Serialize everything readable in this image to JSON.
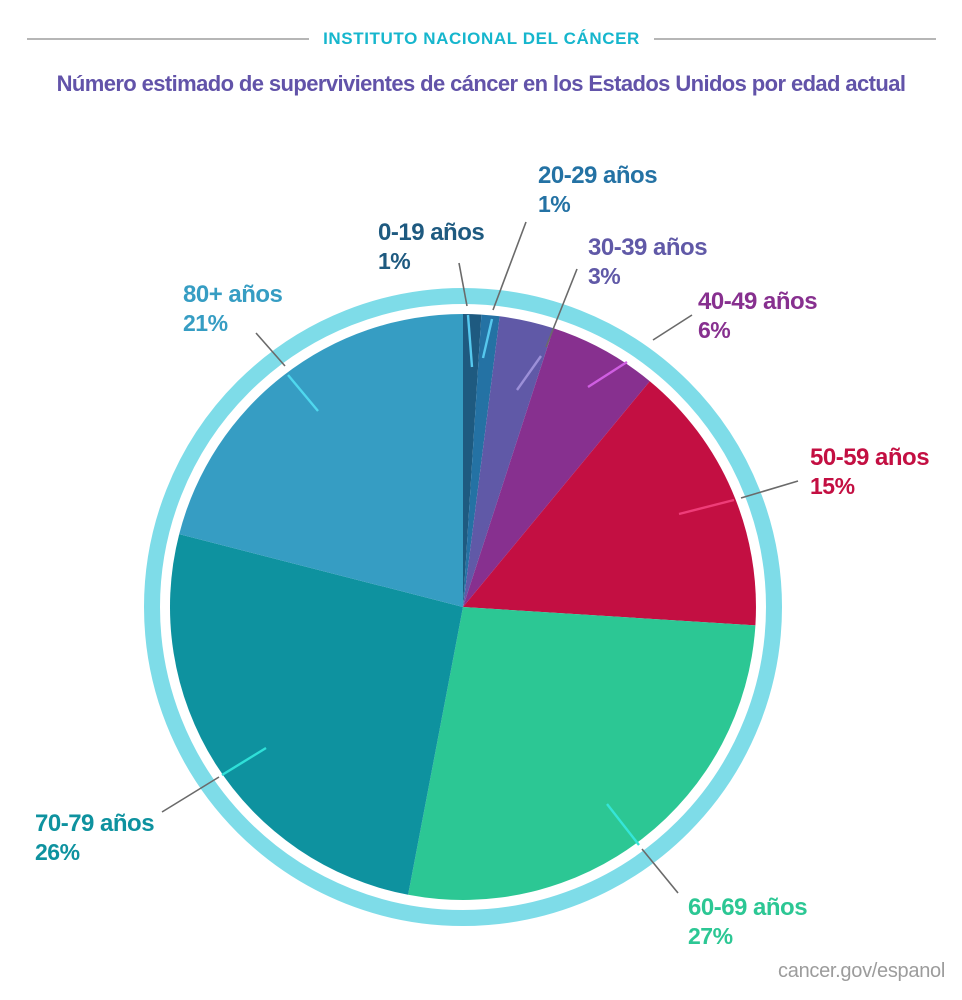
{
  "header": {
    "institute_label": "INSTITUTO NACIONAL DEL CÁNCER"
  },
  "title": "Número estimado de supervivientes de cáncer en los Estados Unidos por edad actual",
  "footer": {
    "url_label": "cancer.gov/espanol"
  },
  "colors": {
    "header_teal": "#16b6cd",
    "title_purple": "#6253a9",
    "ring_cyan": "#7edce8",
    "leader_gray": "#6a6a6a",
    "rule_gray": "#b6b6b6",
    "footer_gray": "#9c9c9c",
    "background": "#ffffff"
  },
  "chart_data": {
    "type": "pie",
    "title": "Número estimado de supervivientes de cáncer en los Estados Unidos por edad actual",
    "units": "percent",
    "start_angle_deg": 0,
    "direction": "clockwise",
    "total_percent": 100,
    "legend_position": "labels-around-pie",
    "slices": [
      {
        "label": "0-19 años",
        "percent": 1,
        "percent_label": "1%",
        "color": "#1e5a80",
        "leader_color": "#56c8ee"
      },
      {
        "label": "20-29 años",
        "percent": 1,
        "percent_label": "1%",
        "color": "#2472a4",
        "leader_color": "#56c8ee"
      },
      {
        "label": "30-39 años",
        "percent": 3,
        "percent_label": "3%",
        "color": "#6059a7",
        "leader_color": "#9c90d8"
      },
      {
        "label": "40-49 años",
        "percent": 6,
        "percent_label": "6%",
        "color": "#87308f",
        "leader_color": "#d05ee2"
      },
      {
        "label": "50-59 años",
        "percent": 15,
        "percent_label": "15%",
        "color": "#c30f42",
        "leader_color": "#ee3d78"
      },
      {
        "label": "60-69 años",
        "percent": 27,
        "percent_label": "27%",
        "color": "#2cc794",
        "leader_color": "#35e5d8"
      },
      {
        "label": "70-79 años",
        "percent": 26,
        "percent_label": "26%",
        "color": "#0e929f",
        "leader_color": "#2fe0d8"
      },
      {
        "label": "80+ años",
        "percent": 21,
        "percent_label": "21%",
        "color": "#369dc3",
        "leader_color": "#4fd8ee"
      }
    ]
  }
}
